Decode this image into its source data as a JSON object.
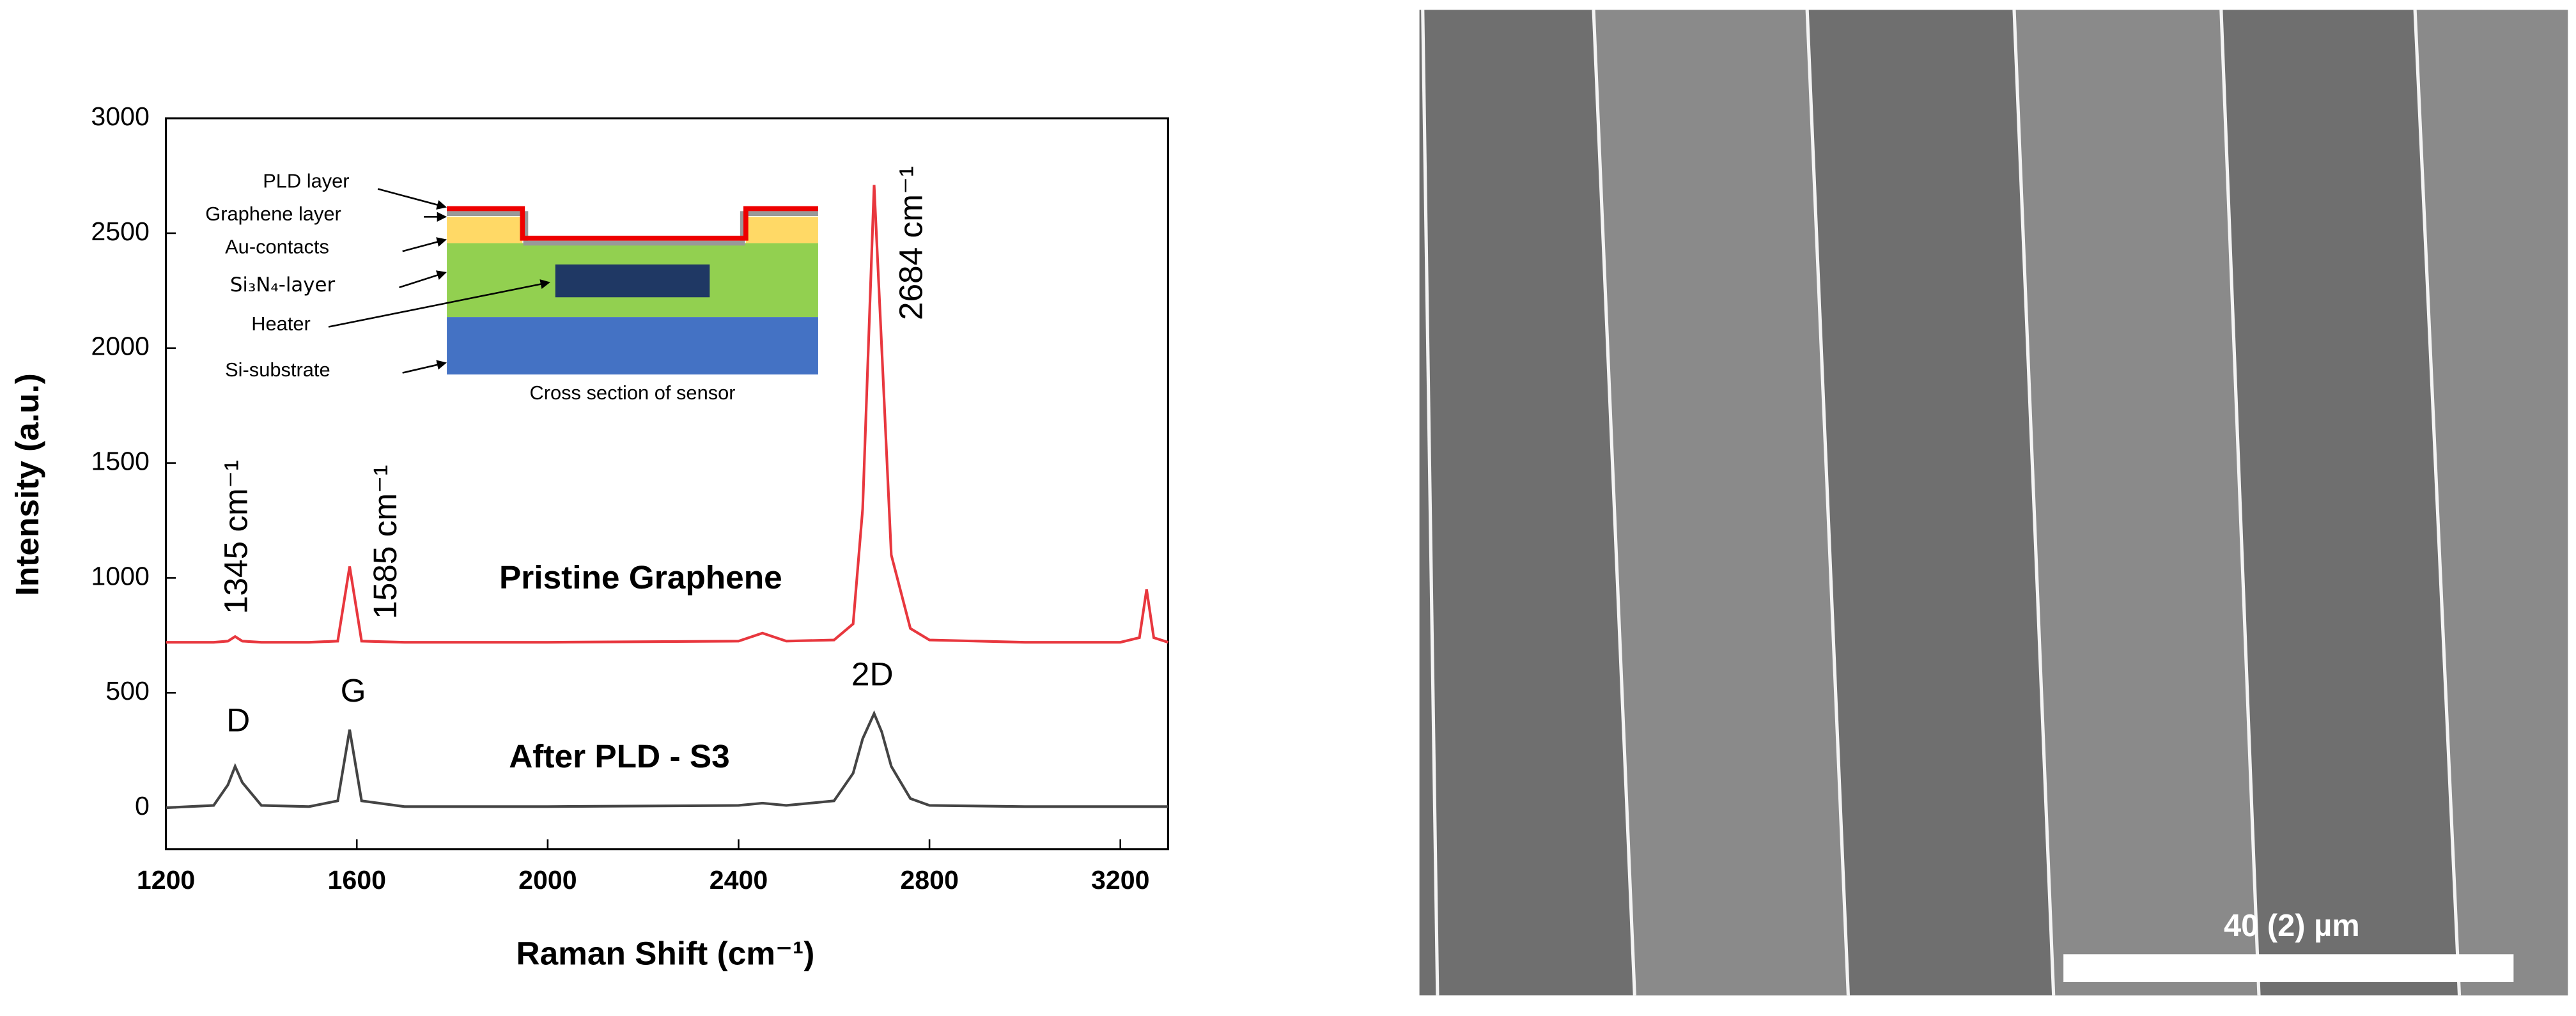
{
  "chart_data": {
    "type": "line",
    "xlabel": "Raman Shift (cm⁻¹)",
    "ylabel": "Intensity (a.u.)",
    "x": [
      1200,
      1300,
      1330,
      1345,
      1360,
      1400,
      1500,
      1560,
      1585,
      1610,
      1700,
      2000,
      2400,
      2450,
      2500,
      2600,
      2640,
      2660,
      2684,
      2700,
      2720,
      2760,
      2800,
      3000,
      3200,
      3240,
      3255,
      3270,
      3300
    ],
    "series": [
      {
        "name": "Pristine Graphene",
        "color": "#e8373e",
        "values": [
          720,
          720,
          725,
          745,
          725,
          720,
          720,
          725,
          1050,
          725,
          720,
          720,
          725,
          760,
          725,
          730,
          800,
          1300,
          2710,
          2000,
          1100,
          780,
          730,
          720,
          720,
          740,
          950,
          740,
          720
        ]
      },
      {
        "name": "After PLD - S3",
        "color": "#444444",
        "values": [
          0,
          10,
          100,
          180,
          110,
          10,
          5,
          30,
          340,
          30,
          5,
          5,
          10,
          20,
          10,
          30,
          150,
          300,
          410,
          330,
          180,
          40,
          10,
          5,
          5,
          5,
          5,
          5,
          5
        ]
      }
    ],
    "xlim": [
      1200,
      3300
    ],
    "ylim": [
      -180,
      3000
    ],
    "xticks": [
      1200,
      1600,
      2000,
      2400,
      2800,
      3200
    ],
    "yticks": [
      0,
      500,
      1000,
      1500,
      2000,
      2500,
      3000
    ],
    "annotations": [
      "1345 cm⁻¹",
      "1585 cm⁻¹",
      "2684 cm⁻¹",
      "D",
      "G",
      "2D"
    ]
  },
  "inset": {
    "labels": [
      "PLD layer",
      "Graphene layer",
      "Au-contacts",
      "Si₃N₄-layer",
      "Heater",
      "Si-substrate"
    ],
    "caption": "Cross section of sensor"
  },
  "micrograph": {
    "scale_bar": "40 (2) µm"
  }
}
